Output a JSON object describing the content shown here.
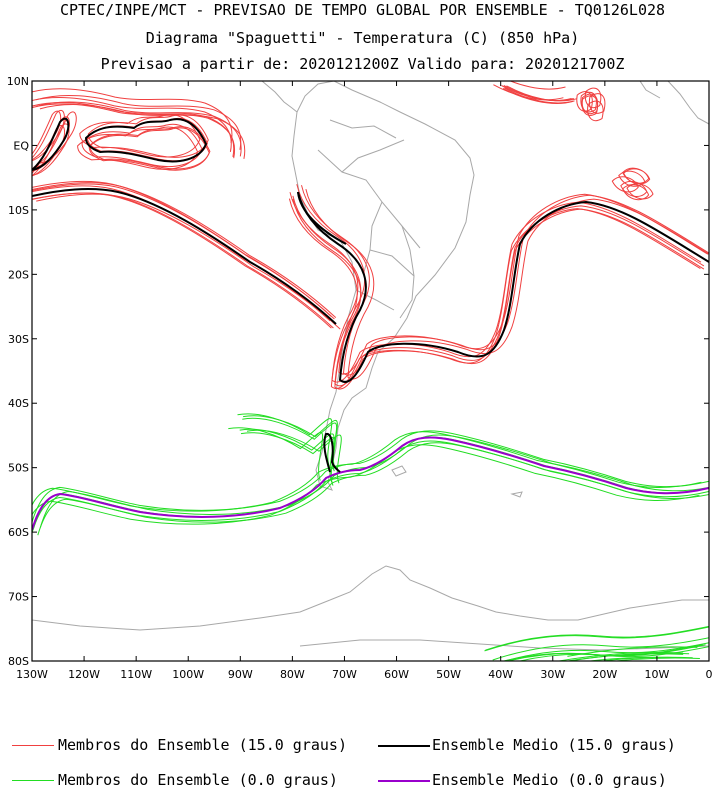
{
  "header": {
    "line1": "CPTEC/INPE/MCT - PREVISAO DE TEMPO GLOBAL POR ENSEMBLE - TQ0126L028",
    "line2": "Diagrama \"Spaguetti\" - Temperatura (C) (850 hPa)",
    "line3": "Previsao a partir de: 2020121200Z  Valido para: 2020121700Z"
  },
  "map": {
    "lat_labels": [
      "10N",
      "EQ",
      "10S",
      "20S",
      "30S",
      "40S",
      "50S",
      "60S",
      "70S",
      "80S"
    ],
    "lon_labels": [
      "130W",
      "120W",
      "110W",
      "100W",
      "90W",
      "80W",
      "70W",
      "60W",
      "50W",
      "40W",
      "30W",
      "20W",
      "10W",
      "0"
    ],
    "lat_range": [
      -80,
      10
    ],
    "lon_range": [
      -130,
      0
    ]
  },
  "colors": {
    "member_15": "#f04040",
    "mean_15": "#000000",
    "member_0": "#22dd22",
    "mean_0": "#9900cc",
    "coast": "#a8a8a8"
  },
  "legend": [
    {
      "label": "Membros do Ensemble (15.0 graus)"
    },
    {
      "label": "Ensemble Medio (15.0 graus)"
    },
    {
      "label": "Membros do Ensemble (0.0 graus)"
    },
    {
      "label": "Ensemble Medio (0.0 graus)"
    }
  ]
}
